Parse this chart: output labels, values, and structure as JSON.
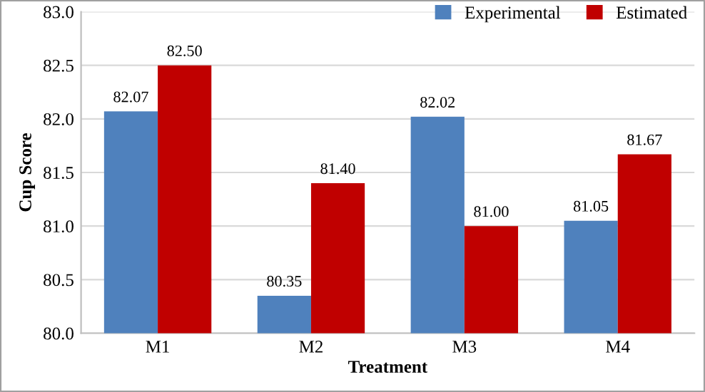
{
  "chart_data": {
    "type": "bar",
    "xlabel": "Treatment",
    "ylabel": "Cup Score",
    "categories": [
      "M1",
      "M2",
      "M3",
      "M4"
    ],
    "series": [
      {
        "name": "Experimental",
        "color": "#4f81bd",
        "values": [
          82.07,
          80.35,
          82.02,
          81.05
        ],
        "value_labels": [
          "82.07",
          "80.35",
          "82.02",
          "81.05"
        ]
      },
      {
        "name": "Estimated",
        "color": "#c00000",
        "values": [
          82.5,
          81.4,
          81.0,
          81.67
        ],
        "value_labels": [
          "82.50",
          "81.40",
          "81.00",
          "81.67"
        ]
      }
    ],
    "ylim": [
      80.0,
      83.0
    ],
    "yticks": [
      {
        "value": 80.0,
        "label": "80.0"
      },
      {
        "value": 80.5,
        "label": "80.5"
      },
      {
        "value": 81.0,
        "label": "81.0"
      },
      {
        "value": 81.5,
        "label": "81.5"
      },
      {
        "value": 82.0,
        "label": "82.0"
      },
      {
        "value": 82.5,
        "label": "82.5"
      },
      {
        "value": 83.0,
        "label": "83.0"
      }
    ],
    "grid": "y",
    "legend": "top right"
  }
}
